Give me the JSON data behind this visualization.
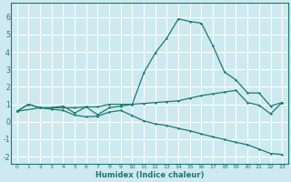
{
  "xlabel": "Humidex (Indice chaleur)",
  "xlim": [
    -0.5,
    23.5
  ],
  "ylim": [
    -2.4,
    6.8
  ],
  "yticks": [
    -2,
    -1,
    0,
    1,
    2,
    3,
    4,
    5,
    6
  ],
  "xticks": [
    0,
    1,
    2,
    3,
    4,
    5,
    6,
    7,
    8,
    9,
    10,
    11,
    12,
    13,
    14,
    15,
    16,
    17,
    18,
    19,
    20,
    21,
    22,
    23
  ],
  "bg_color": "#ceeaf0",
  "grid_color": "#ffffff",
  "line_color": "#1a7a6e",
  "line1_x": [
    0,
    1,
    2,
    3,
    4,
    5,
    6,
    7,
    8,
    9,
    10,
    11,
    12,
    13,
    14,
    15,
    16,
    17,
    18,
    19,
    20,
    21,
    22,
    23
  ],
  "line1_y": [
    0.6,
    1.0,
    0.8,
    0.8,
    0.8,
    0.8,
    0.85,
    0.85,
    1.0,
    1.0,
    1.0,
    1.05,
    1.1,
    1.15,
    1.2,
    1.35,
    1.5,
    1.6,
    1.7,
    1.8,
    1.1,
    0.95,
    0.45,
    1.1
  ],
  "line2_x": [
    0,
    1,
    2,
    3,
    4,
    5,
    6,
    7,
    8,
    9,
    10,
    11,
    12,
    13,
    14,
    15,
    16,
    17,
    18,
    19,
    20,
    21,
    22,
    23
  ],
  "line2_y": [
    0.6,
    1.0,
    0.8,
    0.8,
    0.9,
    0.5,
    0.85,
    0.4,
    0.8,
    0.9,
    1.0,
    2.8,
    3.95,
    4.8,
    5.9,
    5.75,
    5.65,
    4.35,
    2.85,
    2.4,
    1.65,
    1.65,
    0.9,
    1.1
  ],
  "line3_x": [
    0,
    2,
    3,
    4,
    5,
    6,
    7,
    8,
    9,
    10,
    11,
    12,
    13,
    14,
    15,
    16,
    17,
    18,
    19,
    20,
    21,
    22,
    23
  ],
  "line3_y": [
    0.6,
    0.8,
    0.72,
    0.65,
    0.38,
    0.28,
    0.32,
    0.55,
    0.65,
    0.35,
    0.05,
    -0.12,
    -0.22,
    -0.38,
    -0.52,
    -0.7,
    -0.87,
    -1.02,
    -1.18,
    -1.32,
    -1.57,
    -1.82,
    -1.88
  ]
}
